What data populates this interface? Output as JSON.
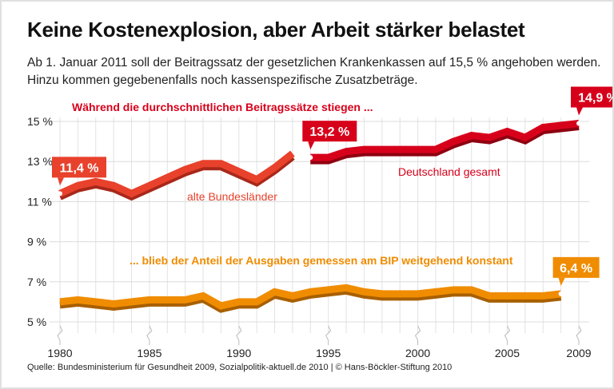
{
  "title": "Keine Kostenexplosion, aber Arbeit stärker belastet",
  "subtitle": "Ab 1. Januar 2011 soll der Beitragssatz der gesetzlichen Krankenkassen auf 15,5 % angehoben werden. Hinzu kommen gegebenenfalls noch kassenspezifische Zusatzbeträge.",
  "source": "Quelle: Bundesministerium für Gesundheit 2009, Sozialpolitik-aktuell.de 2010 | © Hans-Böckler-Stiftung 2010",
  "chart_data": {
    "type": "line",
    "xlim": [
      1980,
      2009
    ],
    "ylim": [
      5,
      15
    ],
    "x_ticks": [
      "1980",
      "1985",
      "1990",
      "1995",
      "2000",
      "2005",
      "2009"
    ],
    "y_ticks": [
      "5 %",
      "7 %",
      "9 %",
      "11 %",
      "13 %",
      "15 %"
    ],
    "grid": true,
    "annotations": {
      "top": "Während die durchschnittlichen Beitragssätze stiegen ...",
      "bottom": "... blieb der Anteil der Ausgaben gemessen am BIP weitgehend konstant"
    },
    "colors": {
      "alte": "#e8412c",
      "gesamt": "#d7001b",
      "bip": "#f08c00"
    },
    "series": [
      {
        "name": "alte Bundesländer",
        "x": [
          1980,
          1981,
          1982,
          1983,
          1984,
          1985,
          1986,
          1987,
          1988,
          1989,
          1990,
          1991,
          1992,
          1993
        ],
        "values": [
          11.4,
          11.8,
          12.0,
          11.8,
          11.4,
          11.8,
          12.2,
          12.6,
          12.9,
          12.9,
          12.5,
          12.1,
          12.7,
          13.4
        ],
        "callout": {
          "x": 1980,
          "label": "11,4 %"
        }
      },
      {
        "name": "Deutschland gesamt",
        "x": [
          1994,
          1995,
          1996,
          1997,
          1998,
          1999,
          2000,
          2001,
          2002,
          2003,
          2004,
          2005,
          2006,
          2007,
          2008,
          2009
        ],
        "values": [
          13.2,
          13.2,
          13.5,
          13.6,
          13.6,
          13.6,
          13.6,
          13.6,
          14.0,
          14.3,
          14.2,
          14.5,
          14.2,
          14.7,
          14.8,
          14.9
        ],
        "callouts": [
          {
            "x": 1994,
            "label": "13,2 %"
          },
          {
            "x": 2009,
            "label": "14,9 %"
          }
        ]
      },
      {
        "name": "",
        "x": [
          1980,
          1981,
          1982,
          1983,
          1984,
          1985,
          1986,
          1987,
          1988,
          1989,
          1990,
          1991,
          1992,
          1993,
          1994,
          1995,
          1996,
          1997,
          1998,
          1999,
          2000,
          2001,
          2002,
          2003,
          2004,
          2005,
          2006,
          2007,
          2008
        ],
        "values": [
          6.0,
          6.1,
          6.0,
          5.9,
          6.0,
          6.1,
          6.1,
          6.1,
          6.3,
          5.8,
          6.0,
          6.0,
          6.5,
          6.3,
          6.5,
          6.6,
          6.7,
          6.5,
          6.4,
          6.4,
          6.4,
          6.5,
          6.6,
          6.6,
          6.3,
          6.3,
          6.3,
          6.3,
          6.4
        ],
        "callout": {
          "x": 2008,
          "label": "6,4 %"
        }
      }
    ]
  }
}
